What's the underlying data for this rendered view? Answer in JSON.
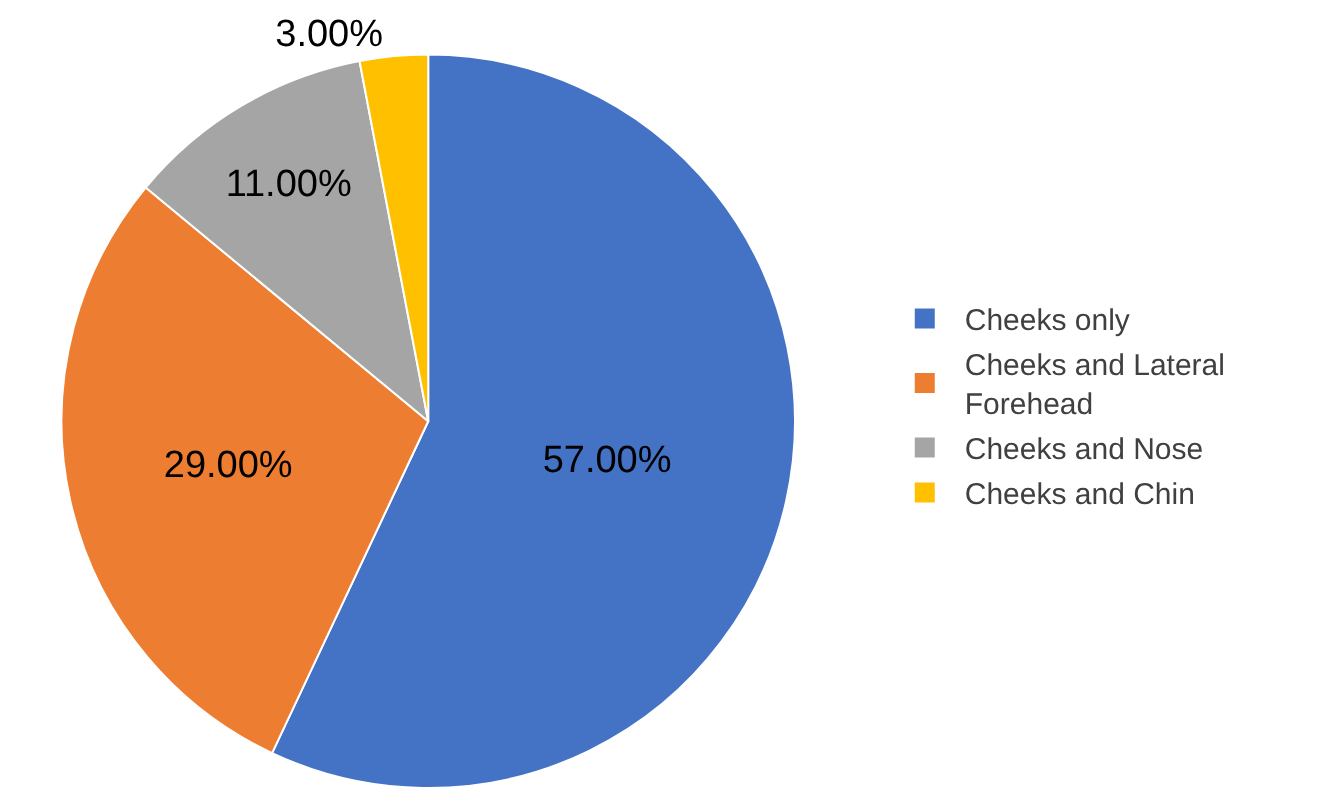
{
  "chart_data": {
    "type": "pie",
    "categories": [
      "Cheeks only",
      "Cheeks and Lateral Forehead",
      "Cheeks and Nose",
      "Cheeks and Chin"
    ],
    "values": [
      57,
      29,
      11,
      3
    ],
    "colors": [
      "#4472c4",
      "#ed7d31",
      "#a5a5a5",
      "#ffc000"
    ],
    "value_labels": [
      "57.00%",
      "29.00%",
      "11.00%",
      "3.00%"
    ],
    "legend": "right"
  }
}
